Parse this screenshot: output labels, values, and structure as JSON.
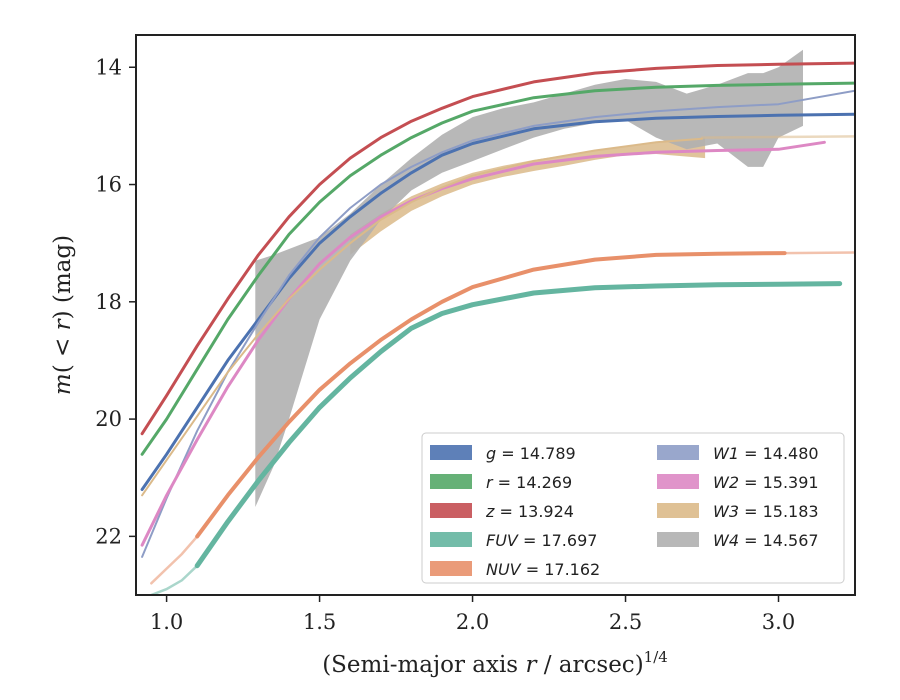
{
  "chart_data": {
    "type": "line",
    "title": "",
    "xlabel": "(Semi-major axis r / arcsec)",
    "xlabel_parts": {
      "prefix": "(Semi-major axis ",
      "var": "r",
      "suffix": " / arcsec)",
      "power": "1/4"
    },
    "ylabel": "m(< r) (mag)",
    "ylabel_parts": {
      "m": "m",
      "open": "(",
      "lt": " < ",
      "r": "r",
      "close": ")",
      "unit": " (mag)"
    },
    "xlim": [
      0.9,
      3.25
    ],
    "ylim": [
      23.0,
      13.45
    ],
    "y_inverted": true,
    "xticks": [
      1.0,
      1.5,
      2.0,
      2.5,
      3.0
    ],
    "xtick_labels": [
      "1.0",
      "1.5",
      "2.0",
      "2.5",
      "3.0"
    ],
    "yticks": [
      14,
      16,
      18,
      20,
      22
    ],
    "ytick_labels": [
      "14",
      "16",
      "18",
      "20",
      "22"
    ],
    "grid": false,
    "legend_position": "lower-right",
    "legend_columns": 2,
    "series": [
      {
        "name": "g",
        "total": "14.789",
        "color": "#4c72b0",
        "width": 3,
        "x": [
          0.92,
          1.0,
          1.1,
          1.2,
          1.3,
          1.4,
          1.5,
          1.6,
          1.7,
          1.8,
          1.9,
          2.0,
          2.2,
          2.4,
          2.6,
          2.8,
          3.0,
          3.25
        ],
        "y": [
          21.2,
          20.6,
          19.8,
          19.0,
          18.3,
          17.6,
          17.0,
          16.55,
          16.15,
          15.8,
          15.5,
          15.3,
          15.05,
          14.93,
          14.87,
          14.84,
          14.82,
          14.8
        ],
        "faint_x": [],
        "faint_y": []
      },
      {
        "name": "r",
        "total": "14.269",
        "color": "#55a868",
        "width": 3,
        "x": [
          0.92,
          1.0,
          1.1,
          1.2,
          1.3,
          1.4,
          1.5,
          1.6,
          1.7,
          1.8,
          1.9,
          2.0,
          2.2,
          2.4,
          2.6,
          2.8,
          3.0,
          3.25
        ],
        "y": [
          20.6,
          20.0,
          19.15,
          18.3,
          17.55,
          16.85,
          16.3,
          15.85,
          15.5,
          15.2,
          14.95,
          14.75,
          14.52,
          14.4,
          14.34,
          14.31,
          14.29,
          14.27
        ],
        "faint_x": [],
        "faint_y": []
      },
      {
        "name": "z",
        "total": "13.924",
        "color": "#c44e52",
        "width": 3,
        "x": [
          0.92,
          1.0,
          1.1,
          1.2,
          1.3,
          1.4,
          1.5,
          1.6,
          1.7,
          1.8,
          1.9,
          2.0,
          2.2,
          2.4,
          2.6,
          2.8,
          3.0,
          3.25
        ],
        "y": [
          20.25,
          19.6,
          18.75,
          17.95,
          17.2,
          16.55,
          16.0,
          15.55,
          15.2,
          14.92,
          14.7,
          14.5,
          14.25,
          14.1,
          14.02,
          13.97,
          13.95,
          13.93
        ],
        "faint_x": [],
        "faint_y": []
      },
      {
        "name": "FUV",
        "total": "17.697",
        "color": "#64b5a0",
        "width": 5,
        "x": [
          1.1,
          1.2,
          1.3,
          1.4,
          1.5,
          1.6,
          1.7,
          1.8,
          1.9,
          2.0,
          2.2,
          2.4,
          2.6,
          2.8,
          3.0,
          3.2
        ],
        "y": [
          22.5,
          21.75,
          21.05,
          20.4,
          19.8,
          19.3,
          18.85,
          18.45,
          18.2,
          18.05,
          17.85,
          17.76,
          17.73,
          17.71,
          17.7,
          17.69
        ],
        "faint_x": [
          0.95,
          1.0,
          1.05,
          1.1
        ],
        "faint_y": [
          23.0,
          22.9,
          22.75,
          22.5
        ]
      },
      {
        "name": "NUV",
        "total": "17.162",
        "color": "#e8906a",
        "width": 4,
        "x": [
          1.1,
          1.2,
          1.3,
          1.4,
          1.5,
          1.6,
          1.7,
          1.8,
          1.9,
          2.0,
          2.2,
          2.4,
          2.6,
          2.8,
          3.02
        ],
        "y": [
          22.0,
          21.3,
          20.65,
          20.05,
          19.5,
          19.05,
          18.65,
          18.3,
          18.0,
          17.75,
          17.45,
          17.28,
          17.2,
          17.18,
          17.17
        ],
        "faint_x": [
          0.95,
          1.0,
          1.05,
          1.1,
          3.02,
          3.25
        ],
        "faint_y": [
          22.8,
          22.55,
          22.3,
          22.0,
          17.17,
          17.16
        ]
      },
      {
        "name": "W1",
        "total": "14.480",
        "color": "#8e9dc6",
        "width": 2,
        "x": [
          0.92,
          1.0,
          1.1,
          1.2,
          1.3,
          1.4,
          1.5,
          1.6,
          1.7,
          1.8,
          1.9,
          2.0,
          2.2,
          2.4,
          2.6,
          2.8,
          3.0,
          3.25
        ],
        "y": [
          22.35,
          21.35,
          20.2,
          19.2,
          18.35,
          17.55,
          16.9,
          16.4,
          16.0,
          15.7,
          15.45,
          15.25,
          15.0,
          14.85,
          14.75,
          14.68,
          14.63,
          14.4
        ],
        "faint_x": [],
        "faint_y": []
      },
      {
        "name": "W2",
        "total": "15.391",
        "color": "#dd88c4",
        "width": 3,
        "x": [
          0.92,
          1.0,
          1.1,
          1.2,
          1.3,
          1.4,
          1.5,
          1.6,
          1.7,
          1.8,
          1.9,
          2.0,
          2.2,
          2.4,
          2.6,
          2.8,
          3.0,
          3.15
        ],
        "y": [
          22.15,
          21.3,
          20.35,
          19.45,
          18.65,
          17.95,
          17.35,
          16.9,
          16.55,
          16.28,
          16.07,
          15.9,
          15.65,
          15.52,
          15.45,
          15.42,
          15.4,
          15.28
        ],
        "faint_x": [],
        "faint_y": []
      },
      {
        "name": "W3",
        "total": "15.183",
        "color": "#dbba8a",
        "width": 2,
        "x": [
          0.92,
          1.0,
          1.1,
          1.2,
          1.3,
          1.4,
          1.5,
          1.6,
          1.7,
          1.8,
          1.9,
          2.0,
          2.2,
          2.4,
          2.6,
          2.75
        ],
        "y": [
          21.3,
          20.7,
          19.95,
          19.2,
          18.55,
          17.95,
          17.45,
          17.0,
          16.6,
          16.3,
          16.05,
          15.85,
          15.6,
          15.42,
          15.28,
          15.22
        ],
        "band_x": [
          1.6,
          1.7,
          1.8,
          1.9,
          2.0,
          2.1,
          2.2,
          2.3,
          2.4,
          2.5,
          2.6,
          2.76
        ],
        "band_lo": [
          16.85,
          16.5,
          16.2,
          15.98,
          15.8,
          15.68,
          15.58,
          15.5,
          15.42,
          15.35,
          15.28,
          15.2
        ],
        "band_hi": [
          17.2,
          16.8,
          16.45,
          16.2,
          16.0,
          15.87,
          15.77,
          15.68,
          15.58,
          15.5,
          15.48,
          15.55
        ],
        "faint_x": [
          2.75,
          3.25
        ],
        "faint_y": [
          15.2,
          15.18
        ]
      },
      {
        "name": "W4",
        "total": "14.567",
        "color": "#b0b0b0",
        "width": 0,
        "x": [],
        "y": [],
        "band_x": [
          1.29,
          1.35,
          1.4,
          1.5,
          1.6,
          1.7,
          1.8,
          1.9,
          2.0,
          2.1,
          2.2,
          2.3,
          2.4,
          2.5,
          2.6,
          2.7,
          2.8,
          2.9,
          2.95,
          3.0,
          3.08
        ],
        "band_lo": [
          21.5,
          20.8,
          20.0,
          18.3,
          17.3,
          16.6,
          16.1,
          15.8,
          15.6,
          15.4,
          15.2,
          15.05,
          14.95,
          14.9,
          15.2,
          15.4,
          15.3,
          15.7,
          15.7,
          15.2,
          15.0
        ],
        "band_hi": [
          17.3,
          17.2,
          17.1,
          16.9,
          16.5,
          16.0,
          15.55,
          15.15,
          14.85,
          14.7,
          14.6,
          14.45,
          14.3,
          14.2,
          14.25,
          14.45,
          14.3,
          14.1,
          14.1,
          14.0,
          13.7
        ],
        "faint_x": [],
        "faint_y": []
      }
    ]
  }
}
